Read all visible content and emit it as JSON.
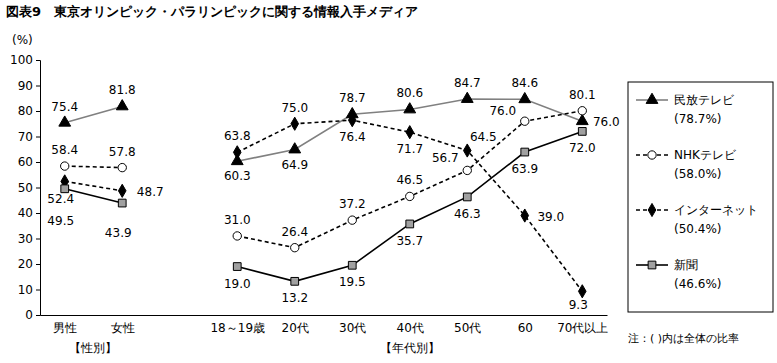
{
  "chart_data": {
    "type": "line",
    "title": "図表9　東京オリンピック・パラリンピックに関する情報入手メディア",
    "y_label": "(%)",
    "categories": [
      "男性",
      "女性",
      null,
      "18～19歳",
      "20代",
      "30代",
      "40代",
      "50代",
      "60",
      "70代以上"
    ],
    "group_labels": [
      "【性別】",
      "【年代別】"
    ],
    "note": "注：( )内は全体の比率",
    "ylim": [
      0,
      100
    ],
    "yticks": [
      0,
      10,
      20,
      30,
      40,
      50,
      60,
      70,
      80,
      90,
      100
    ],
    "grid": false,
    "legend": "right",
    "data_labels": true,
    "series": [
      {
        "name": "民放テレビ",
        "overall_label": "(78.7%)",
        "color": "#808080",
        "marker": "triangle",
        "line_style": "solid",
        "values": [
          75.4,
          81.8,
          null,
          60.3,
          64.9,
          78.7,
          80.6,
          84.7,
          84.6,
          76.0
        ],
        "value_labels": [
          "75.4",
          "81.8",
          null,
          "60.3",
          "64.9",
          "78.7",
          "80.6",
          "84.7",
          "84.6",
          "76.0"
        ]
      },
      {
        "name": "NHKテレビ",
        "overall_label": "(58.0%)",
        "color": "#000000",
        "marker": "circle",
        "line_style": "dashed",
        "values": [
          58.4,
          57.8,
          null,
          31.0,
          26.4,
          37.2,
          46.5,
          56.7,
          76.0,
          80.1
        ],
        "value_labels": [
          "58.4",
          "57.8",
          null,
          "31.0",
          "26.4",
          "37.2",
          "46.5",
          "56.7",
          "76.0",
          "80.1"
        ]
      },
      {
        "name": "インターネット",
        "overall_label": "(50.4%)",
        "color": "#000000",
        "marker": "diamond",
        "line_style": "dashed",
        "values": [
          52.4,
          48.7,
          null,
          63.8,
          75.0,
          76.4,
          71.7,
          64.5,
          39.0,
          9.3
        ],
        "value_labels": [
          "52.4",
          "48.7",
          null,
          "63.8",
          "75.0",
          "76.4",
          "71.7",
          "64.5",
          "39.0",
          "9.3"
        ]
      },
      {
        "name": "新聞",
        "overall_label": "(46.6%)",
        "color": "#000000",
        "marker": "square",
        "line_style": "solid",
        "values": [
          49.5,
          43.9,
          null,
          19.0,
          13.2,
          19.5,
          35.7,
          46.3,
          63.9,
          72.0
        ],
        "value_labels": [
          "49.5",
          "43.9",
          null,
          "19.0",
          "13.2",
          "19.5",
          "35.7",
          "46.3",
          "63.9",
          "72.0"
        ]
      }
    ]
  }
}
